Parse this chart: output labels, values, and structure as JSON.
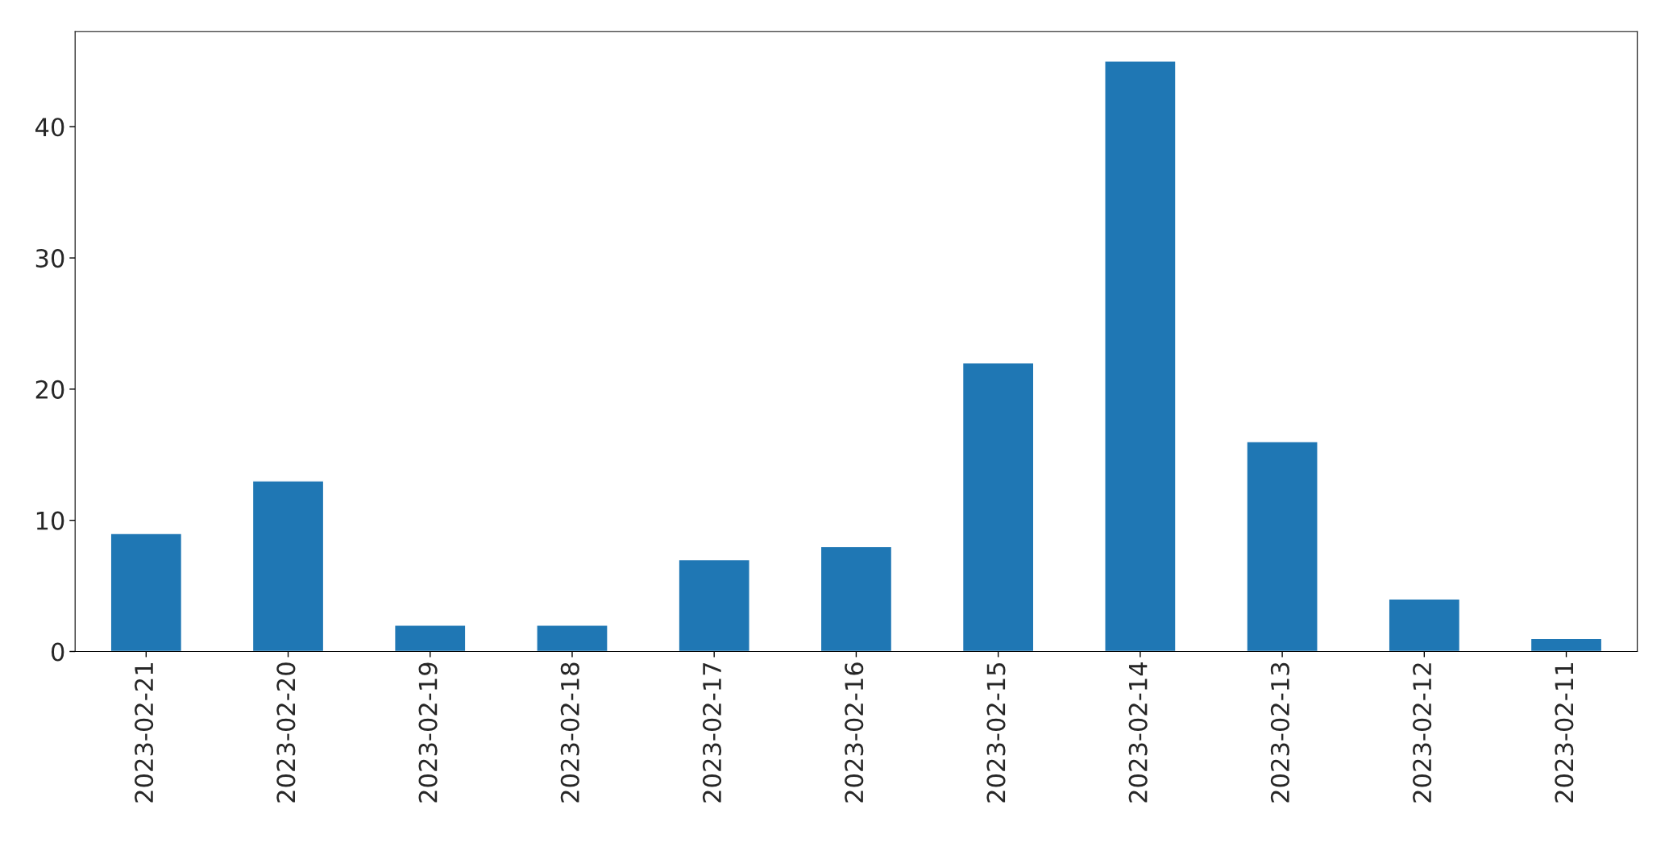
{
  "chart_data": {
    "type": "bar",
    "categories": [
      "2023-02-21",
      "2023-02-20",
      "2023-02-19",
      "2023-02-18",
      "2023-02-17",
      "2023-02-16",
      "2023-02-15",
      "2023-02-14",
      "2023-02-13",
      "2023-02-12",
      "2023-02-11"
    ],
    "values": [
      9,
      13,
      2,
      2,
      7,
      8,
      22,
      45,
      16,
      4,
      1
    ],
    "color": "#1f77b4",
    "ylim": [
      0,
      47.25
    ],
    "yticks": [
      0,
      10,
      20,
      30,
      40
    ],
    "grid": false
  }
}
